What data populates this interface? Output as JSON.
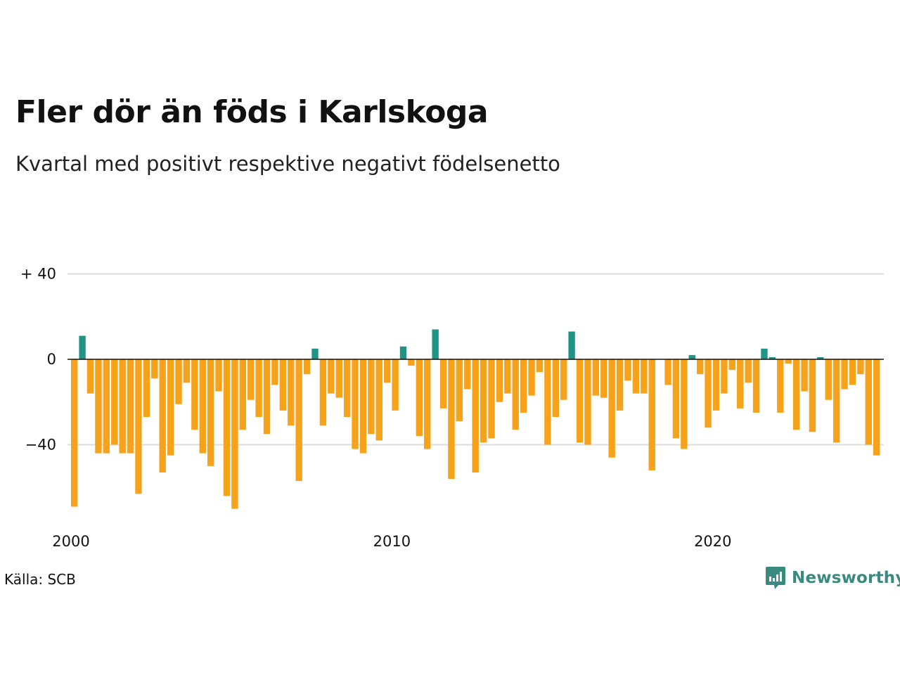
{
  "title": "Fler dör än föds i Karlskoga",
  "subtitle": "Kvartal med positivt respektive negativt födelsenetto",
  "source": "Källa: SCB",
  "brand": {
    "name": "Newsworthy",
    "icon": "newsworthy-logo-icon"
  },
  "colors": {
    "positive": "#1f9685",
    "negative": "#f7a21b",
    "gridline": "#dddddd",
    "zero_line": "#111111",
    "brand": "#3a8a80"
  },
  "chart_data": {
    "type": "bar",
    "title": "Fler dör än föds i Karlskoga",
    "subtitle": "Kvartal med positivt respektive negativt födelsenetto",
    "x_start": "2000 Q1",
    "x_end": "2025 Q1",
    "categories": [
      "2000 Q1",
      "2000 Q2",
      "2000 Q3",
      "2000 Q4",
      "2001 Q1",
      "2001 Q2",
      "2001 Q3",
      "2001 Q4",
      "2002 Q1",
      "2002 Q2",
      "2002 Q3",
      "2002 Q4",
      "2003 Q1",
      "2003 Q2",
      "2003 Q3",
      "2003 Q4",
      "2004 Q1",
      "2004 Q2",
      "2004 Q3",
      "2004 Q4",
      "2005 Q1",
      "2005 Q2",
      "2005 Q3",
      "2005 Q4",
      "2006 Q1",
      "2006 Q2",
      "2006 Q3",
      "2006 Q4",
      "2007 Q1",
      "2007 Q2",
      "2007 Q3",
      "2007 Q4",
      "2008 Q1",
      "2008 Q2",
      "2008 Q3",
      "2008 Q4",
      "2009 Q1",
      "2009 Q2",
      "2009 Q3",
      "2009 Q4",
      "2010 Q1",
      "2010 Q2",
      "2010 Q3",
      "2010 Q4",
      "2011 Q1",
      "2011 Q2",
      "2011 Q3",
      "2011 Q4",
      "2012 Q1",
      "2012 Q2",
      "2012 Q3",
      "2012 Q4",
      "2013 Q1",
      "2013 Q2",
      "2013 Q3",
      "2013 Q4",
      "2014 Q1",
      "2014 Q2",
      "2014 Q3",
      "2014 Q4",
      "2015 Q1",
      "2015 Q2",
      "2015 Q3",
      "2015 Q4",
      "2016 Q1",
      "2016 Q2",
      "2016 Q3",
      "2016 Q4",
      "2017 Q1",
      "2017 Q2",
      "2017 Q3",
      "2017 Q4",
      "2018 Q1",
      "2018 Q2",
      "2018 Q3",
      "2018 Q4",
      "2019 Q1",
      "2019 Q2",
      "2019 Q3",
      "2019 Q4",
      "2020 Q1",
      "2020 Q2",
      "2020 Q3",
      "2020 Q4",
      "2021 Q1",
      "2021 Q2",
      "2021 Q3",
      "2021 Q4",
      "2022 Q1",
      "2022 Q2",
      "2022 Q3",
      "2022 Q4",
      "2023 Q1",
      "2023 Q2",
      "2023 Q3",
      "2023 Q4",
      "2024 Q1",
      "2024 Q2",
      "2024 Q3",
      "2024 Q4",
      "2025 Q1"
    ],
    "values": [
      -69,
      11,
      -16,
      -44,
      -44,
      -40,
      -44,
      -44,
      -63,
      -27,
      -9,
      -53,
      -45,
      -21,
      -11,
      -33,
      -44,
      -50,
      -15,
      -64,
      -70,
      -33,
      -19,
      -27,
      -35,
      -12,
      -24,
      -31,
      -57,
      -7,
      5,
      -31,
      -16,
      -18,
      -27,
      -42,
      -44,
      -35,
      -38,
      -11,
      -24,
      6,
      -3,
      -36,
      -42,
      14,
      -23,
      -56,
      -29,
      -14,
      -53,
      -39,
      -37,
      -20,
      -16,
      -33,
      -25,
      -17,
      -6,
      -40,
      -27,
      -19,
      13,
      -39,
      -40,
      -17,
      -18,
      -46,
      -24,
      -10,
      -16,
      -16,
      -52,
      0,
      -12,
      -37,
      -42,
      2,
      -7,
      -32,
      -24,
      -16,
      -5,
      -23,
      -11,
      -25,
      5,
      1,
      -25,
      -2,
      -33,
      -15,
      -34,
      1,
      -19,
      -39,
      -14,
      -12,
      -7,
      -40,
      -45
    ],
    "ylim": [
      -75,
      45
    ],
    "yticks": [
      {
        "value": 40,
        "label": "+ 40"
      },
      {
        "value": 0,
        "label": "0"
      },
      {
        "value": -40,
        "label": "−40"
      }
    ],
    "xticks": [
      {
        "index": 0,
        "label": "2000"
      },
      {
        "index": 40,
        "label": "2010"
      },
      {
        "index": 80,
        "label": "2020"
      }
    ],
    "grid": true,
    "legend": "none"
  }
}
